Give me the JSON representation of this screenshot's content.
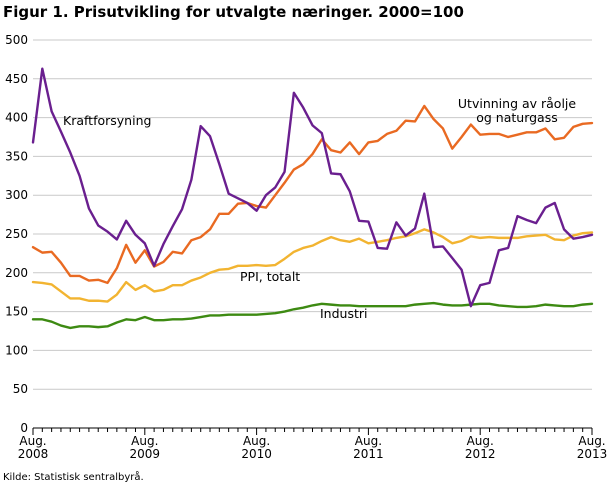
{
  "title": "Figur 1. Prisutvikling for utvalgte næringer. 2000=100",
  "source": "Kilde: Statistisk sentralbyrå.",
  "colors": {
    "kraftforsyning": "#6a1f8f",
    "utvinning": "#e96a22",
    "ppi": "#f2b431",
    "industri": "#3d8a12",
    "grid": "#c9c9c9",
    "axis": "#000000"
  },
  "chart_data": {
    "type": "line",
    "title": "Figur 1. Prisutvikling for utvalgte næringer. 2000=100",
    "ylim": [
      0,
      500
    ],
    "y_ticks": [
      0,
      50,
      100,
      150,
      200,
      250,
      300,
      350,
      400,
      450,
      500
    ],
    "x_start": "2008-08",
    "x_end": "2013-08",
    "x_tick_labels": [
      {
        "month": "2008-08",
        "line1": "Aug.",
        "line2": "2008"
      },
      {
        "month": "2009-08",
        "line1": "Aug.",
        "line2": "2009"
      },
      {
        "month": "2010-08",
        "line1": "Aug.",
        "line2": "2010"
      },
      {
        "month": "2011-08",
        "line1": "Aug.",
        "line2": "2011"
      },
      {
        "month": "2012-08",
        "line1": "Aug.",
        "line2": "2012"
      },
      {
        "month": "2013-08",
        "line1": "Aug.",
        "line2": "2013"
      }
    ],
    "grid": true,
    "series": [
      {
        "name": "Kraftforsyning",
        "label_lines": [
          "Kraftforsyning"
        ],
        "color_key": "kraftforsyning",
        "values": [
          368,
          463,
          408,
          382,
          355,
          325,
          283,
          261,
          253,
          243,
          267,
          249,
          238,
          209,
          237,
          260,
          282,
          320,
          389,
          376,
          340,
          302,
          296,
          290,
          280,
          300,
          310,
          330,
          432,
          413,
          390,
          380,
          328,
          327,
          305,
          267,
          266,
          232,
          231,
          265,
          248,
          257,
          302,
          233,
          234,
          219,
          204,
          157,
          184,
          187,
          229,
          232,
          273,
          268,
          264,
          284,
          290,
          256,
          244,
          246,
          249
        ]
      },
      {
        "name": "Utvinning av råolje og naturgass",
        "label_lines": [
          "Utvinning av råolje",
          "og naturgass"
        ],
        "color_key": "utvinning",
        "values": [
          233,
          226,
          227,
          213,
          196,
          196,
          190,
          191,
          187,
          206,
          236,
          213,
          229,
          208,
          214,
          227,
          225,
          242,
          246,
          256,
          276,
          276,
          289,
          290,
          286,
          284,
          300,
          316,
          333,
          340,
          353,
          372,
          358,
          355,
          368,
          353,
          368,
          370,
          379,
          383,
          396,
          395,
          415,
          398,
          386,
          360,
          375,
          391,
          378,
          379,
          379,
          375,
          378,
          381,
          381,
          386,
          372,
          374,
          388,
          392,
          393
        ]
      },
      {
        "name": "PPI, totalt",
        "label_lines": [
          "PPI, totalt"
        ],
        "color_key": "ppi",
        "values": [
          188,
          187,
          185,
          176,
          167,
          167,
          164,
          164,
          163,
          172,
          188,
          178,
          184,
          176,
          178,
          184,
          184,
          190,
          194,
          200,
          204,
          205,
          209,
          209,
          210,
          209,
          210,
          218,
          227,
          232,
          235,
          241,
          246,
          242,
          240,
          244,
          238,
          240,
          242,
          245,
          247,
          251,
          256,
          252,
          246,
          238,
          241,
          247,
          245,
          246,
          245,
          245,
          245,
          247,
          248,
          249,
          243,
          242,
          248,
          251,
          252
        ]
      },
      {
        "name": "Industri",
        "label_lines": [
          "Industri"
        ],
        "color_key": "industri",
        "values": [
          140,
          140,
          137,
          132,
          129,
          131,
          131,
          130,
          131,
          136,
          140,
          139,
          143,
          139,
          139,
          140,
          140,
          141,
          143,
          145,
          145,
          146,
          146,
          146,
          146,
          147,
          148,
          150,
          153,
          155,
          158,
          160,
          159,
          158,
          158,
          157,
          157,
          157,
          157,
          157,
          157,
          159,
          160,
          161,
          159,
          158,
          158,
          159,
          160,
          160,
          158,
          157,
          156,
          156,
          157,
          159,
          158,
          157,
          157,
          159,
          160
        ]
      }
    ]
  }
}
